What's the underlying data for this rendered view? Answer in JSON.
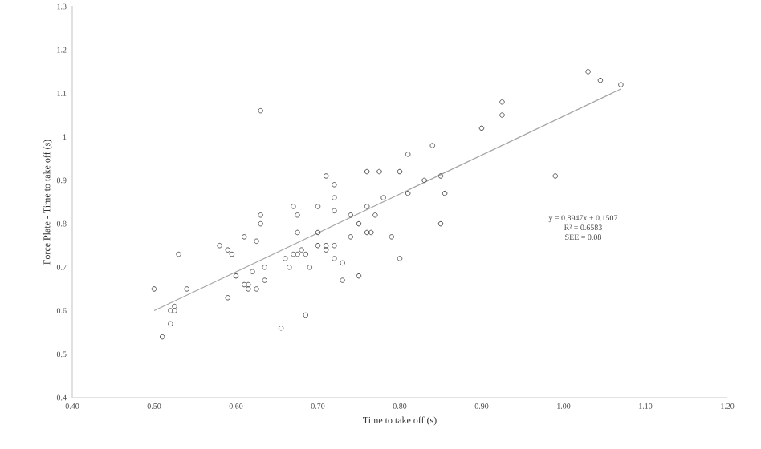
{
  "chart_data": {
    "type": "scatter",
    "xlabel": "Time to take off (s)",
    "ylabel": "Force Plate - Time to take off (s)",
    "xlim": [
      0.4,
      1.2
    ],
    "ylim": [
      0.4,
      1.3
    ],
    "xticks": [
      {
        "value": 0.4,
        "label": "0.40"
      },
      {
        "value": 0.5,
        "label": "0.50"
      },
      {
        "value": 0.6,
        "label": "0.60"
      },
      {
        "value": 0.7,
        "label": "0.70"
      },
      {
        "value": 0.8,
        "label": "0.80"
      },
      {
        "value": 0.9,
        "label": "0.90"
      },
      {
        "value": 1.0,
        "label": "1.00"
      },
      {
        "value": 1.1,
        "label": "1.10"
      },
      {
        "value": 1.2,
        "label": "1.20"
      }
    ],
    "yticks": [
      0.4,
      0.5,
      0.6,
      0.7,
      0.8,
      0.9,
      1,
      1.1,
      1.2,
      1.3
    ],
    "grid": false,
    "annotations": [
      "y = 0.8947x + 0.1507",
      "R² = 0.6583",
      "SEE = 0.08"
    ],
    "series": [
      {
        "marker": "circle",
        "color": "#555555",
        "x": [
          0.5,
          0.51,
          0.52,
          0.52,
          0.525,
          0.525,
          0.53,
          0.54,
          0.58,
          0.59,
          0.59,
          0.595,
          0.6,
          0.61,
          0.61,
          0.615,
          0.615,
          0.62,
          0.625,
          0.625,
          0.63,
          0.63,
          0.63,
          0.635,
          0.635,
          0.655,
          0.66,
          0.665,
          0.67,
          0.675,
          0.67,
          0.675,
          0.675,
          0.68,
          0.685,
          0.685,
          0.69,
          0.7,
          0.7,
          0.7,
          0.71,
          0.71,
          0.71,
          0.72,
          0.72,
          0.72,
          0.72,
          0.72,
          0.73,
          0.73,
          0.74,
          0.74,
          0.75,
          0.75,
          0.76,
          0.76,
          0.765,
          0.76,
          0.77,
          0.775,
          0.78,
          0.79,
          0.8,
          0.8,
          0.81,
          0.81,
          0.83,
          0.84,
          0.85,
          0.85,
          0.855,
          0.9,
          0.925,
          0.925,
          0.99,
          1.03,
          1.045,
          1.07
        ],
        "values": [
          0.65,
          0.54,
          0.6,
          0.57,
          0.6,
          0.61,
          0.73,
          0.65,
          0.75,
          0.63,
          0.74,
          0.73,
          0.68,
          0.77,
          0.66,
          0.66,
          0.65,
          0.69,
          0.65,
          0.76,
          0.8,
          0.82,
          1.06,
          0.7,
          0.67,
          0.56,
          0.72,
          0.7,
          0.73,
          0.73,
          0.84,
          0.82,
          0.78,
          0.74,
          0.73,
          0.59,
          0.7,
          0.78,
          0.75,
          0.84,
          0.91,
          0.75,
          0.74,
          0.89,
          0.86,
          0.83,
          0.75,
          0.72,
          0.71,
          0.67,
          0.77,
          0.82,
          0.8,
          0.68,
          0.84,
          0.78,
          0.78,
          0.92,
          0.82,
          0.92,
          0.86,
          0.77,
          0.92,
          0.72,
          0.87,
          0.96,
          0.9,
          0.98,
          0.91,
          0.8,
          0.87,
          1.02,
          1.08,
          1.05,
          0.91,
          1.15,
          1.13,
          1.12
        ]
      },
      {
        "type": "line",
        "color": "#a6a6a6",
        "x": [
          0.5,
          1.07
        ],
        "values": [
          0.6,
          1.11
        ]
      }
    ]
  }
}
